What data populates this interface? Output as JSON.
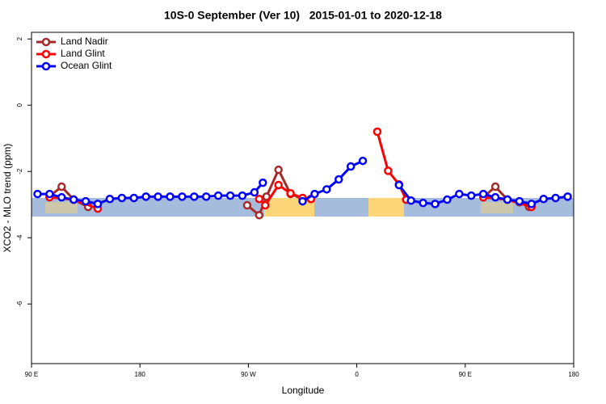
{
  "chart_data": {
    "type": "line",
    "title": "10S-0 September (Ver 10)   2015-01-01 to 2020-12-18",
    "xlabel": "Longitude",
    "ylabel": "XCO2 - MLO trend (ppm)",
    "xlim": [
      90,
      540
    ],
    "ylim": [
      -7.8,
      2.2
    ],
    "xticks": [
      {
        "value": 90,
        "label": "90 E"
      },
      180,
      {
        "value": 270,
        "label": "90 W"
      },
      {
        "value": 360,
        "label": "0"
      },
      {
        "value": 450,
        "label": "90 E"
      },
      {
        "value": 540,
        "label": "180"
      }
    ],
    "yticks": [
      2,
      0,
      -2,
      -4,
      -6
    ],
    "legend": "top-left",
    "series": [
      {
        "name": "Land Nadir",
        "color": "#a52a2a",
        "x": [
          105,
          115,
          125,
          137,
          null,
          269,
          279,
          285,
          295,
          305,
          315,
          322,
          null,
          401,
          null,
          465,
          475,
          485,
          495,
          503
        ],
        "values": [
          -2.75,
          -2.46,
          -2.85,
          -3.07,
          null,
          -3.02,
          -3.32,
          -2.76,
          -1.95,
          -2.68,
          -2.83,
          -2.83,
          null,
          -2.85,
          null,
          -2.78,
          -2.46,
          -2.85,
          -2.93,
          -3.07
        ]
      },
      {
        "name": "Land Glint",
        "color": "#ff0000",
        "x": [
          105,
          125,
          145,
          null,
          279,
          284,
          295,
          305,
          315,
          322,
          null,
          377,
          386,
          395,
          401,
          null,
          465,
          485,
          505
        ],
        "values": [
          -2.78,
          -2.85,
          -3.12,
          null,
          -2.83,
          -3.02,
          -2.41,
          -2.66,
          -2.8,
          -2.83,
          null,
          -0.8,
          -1.98,
          -2.39,
          -2.85,
          null,
          -2.78,
          -2.85,
          -3.07
        ]
      },
      {
        "name": "Ocean Glint",
        "color": "#0000ff",
        "x": [
          95,
          105,
          115,
          125,
          135,
          145,
          155,
          165,
          175,
          185,
          195,
          205,
          215,
          225,
          235,
          245,
          255,
          265,
          275,
          282,
          null,
          315,
          325,
          335,
          345,
          355,
          365,
          null,
          395,
          405,
          415,
          425,
          435,
          445,
          455,
          465,
          475,
          485,
          495,
          505,
          515,
          525,
          535
        ],
        "values": [
          -2.68,
          -2.68,
          -2.78,
          -2.85,
          -2.9,
          -2.98,
          -2.83,
          -2.8,
          -2.8,
          -2.76,
          -2.76,
          -2.76,
          -2.76,
          -2.76,
          -2.76,
          -2.73,
          -2.73,
          -2.73,
          -2.63,
          -2.34,
          null,
          -2.9,
          -2.68,
          -2.54,
          -2.24,
          -1.85,
          -1.68,
          null,
          -2.41,
          -2.88,
          -2.95,
          -2.98,
          -2.85,
          -2.68,
          -2.73,
          -2.68,
          -2.78,
          -2.85,
          -2.9,
          -2.98,
          -2.83,
          -2.8,
          -2.76
        ]
      }
    ]
  }
}
